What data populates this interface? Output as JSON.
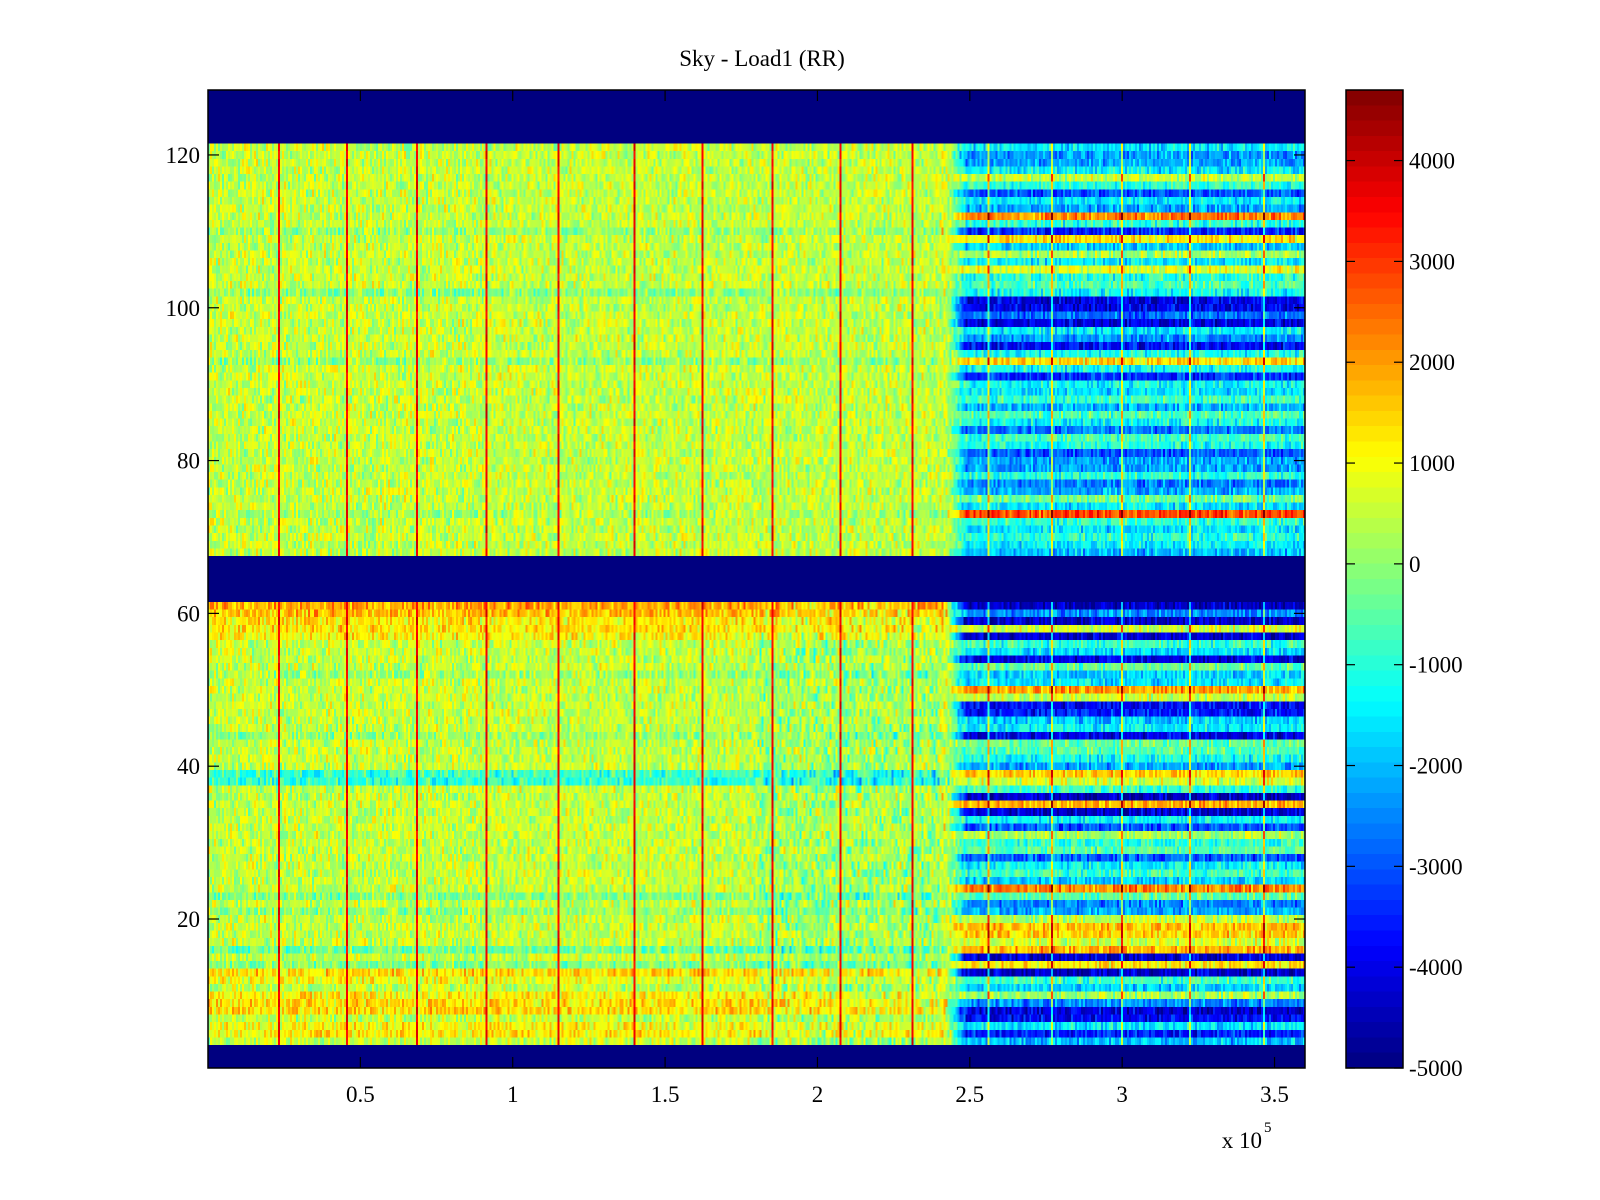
{
  "chart_data": {
    "type": "heatmap",
    "title": "Sky - Load1 (RR)",
    "xlabel": "",
    "ylabel": "",
    "x_multiplier_label": "x 10",
    "x_multiplier_exponent": "5",
    "xlim": [
      0,
      3.6
    ],
    "ylim": [
      0.5,
      128.5
    ],
    "xticks": [
      0.5,
      1,
      1.5,
      2,
      2.5,
      3,
      3.5
    ],
    "xtick_labels": [
      "0.5",
      "1",
      "1.5",
      "2",
      "2.5",
      "3",
      "3.5"
    ],
    "yticks": [
      20,
      40,
      60,
      80,
      100,
      120
    ],
    "ytick_labels": [
      "20",
      "40",
      "60",
      "80",
      "100",
      "120"
    ],
    "colormap": "jet",
    "clim": [
      -5000,
      4700
    ],
    "colorbar_ticks": [
      4000,
      3000,
      2000,
      1000,
      0,
      -1000,
      -2000,
      -3000,
      -4000,
      -5000
    ],
    "colorbar_tick_labels": [
      "4000",
      "3000",
      "2000",
      "1000",
      "0",
      "-1000",
      "-2000",
      "-3000",
      "-4000",
      "-5000"
    ],
    "grid": false,
    "rows": 128,
    "blank_row_ranges": [
      [
        1,
        3
      ],
      [
        62,
        67
      ],
      [
        122,
        128
      ]
    ],
    "blank_value": -5000,
    "baseline_value": 500,
    "noise_amplitude": 700,
    "transition_x": 2.42,
    "spike_x_left": [
      0.23,
      0.45,
      0.68,
      0.91,
      1.15,
      1.4,
      1.62,
      1.85,
      2.07,
      2.31
    ],
    "spike_x_right": [
      2.56,
      2.77,
      3.0,
      3.22,
      3.46
    ],
    "spike_value": 3600,
    "right_region_row_levels": {
      "4": -2000,
      "5": -3500,
      "6": -1500,
      "7": -3800,
      "8": -4200,
      "9": -2500,
      "10": 200,
      "11": -1800,
      "12": -800,
      "13": -4300,
      "14": 1200,
      "15": -4200,
      "16": 1800,
      "17": 600,
      "18": 1500,
      "19": 1600,
      "20": 400,
      "21": -2200,
      "22": -2600,
      "23": -500,
      "24": 2200,
      "25": -1800,
      "26": -800,
      "27": -1400,
      "28": -3000,
      "29": -600,
      "30": -1000,
      "31": 200,
      "32": -3000,
      "33": -1400,
      "34": -4300,
      "35": 1800,
      "36": -4300,
      "37": -800,
      "38": 600,
      "39": 1500,
      "40": -2200,
      "41": -1200,
      "42": -600,
      "43": -400,
      "44": -4000,
      "45": -1500,
      "46": -1800,
      "47": -3600,
      "48": -3800,
      "49": 500,
      "50": 1900,
      "51": -1600,
      "52": -1800,
      "53": -400,
      "54": -4000,
      "55": -1700,
      "56": -900,
      "57": -4300,
      "58": 600,
      "59": -4300,
      "60": -2500,
      "61": -4400,
      "68": -2000,
      "69": -1500,
      "70": -1000,
      "71": -1600,
      "72": -900,
      "73": 2800,
      "74": -1600,
      "75": -400,
      "76": -2200,
      "77": -2600,
      "78": -1000,
      "79": -2200,
      "80": -2200,
      "81": -3000,
      "82": -1200,
      "83": -800,
      "84": -2600,
      "85": -1300,
      "86": -600,
      "87": -2100,
      "88": -900,
      "89": -1600,
      "90": -1300,
      "91": -3400,
      "92": -1200,
      "93": 1300,
      "94": -1200,
      "95": -3800,
      "96": -2400,
      "97": -1500,
      "98": -4000,
      "99": -2800,
      "100": -4000,
      "101": -4000,
      "102": -1300,
      "103": -600,
      "104": -1000,
      "105": 800,
      "106": -1500,
      "107": 200,
      "108": -1800,
      "109": 1200,
      "110": -3500,
      "111": -1000,
      "112": 2200,
      "113": -2200,
      "114": -1500,
      "115": -3000,
      "116": -1000,
      "117": 500,
      "118": -1500,
      "119": -2200,
      "120": -2300,
      "121": -1500
    },
    "left_region_row_offsets": {
      "5": 700,
      "6": 500,
      "8": 900,
      "9": 800,
      "10": 600,
      "12": 400,
      "13": 900,
      "14": -600,
      "16": -800,
      "21": -500,
      "23": -600,
      "38": -1400,
      "39": -1300,
      "44": -400,
      "52": -300,
      "57": 600,
      "58": 800,
      "59": 700,
      "60": 1200,
      "61": 1400,
      "73": -300,
      "93": -500,
      "102": -600,
      "110": -400
    },
    "left_cool_patch": {
      "x": [
        1.8,
        2.4
      ],
      "rows": [
        4,
        61
      ],
      "value": -800
    }
  }
}
